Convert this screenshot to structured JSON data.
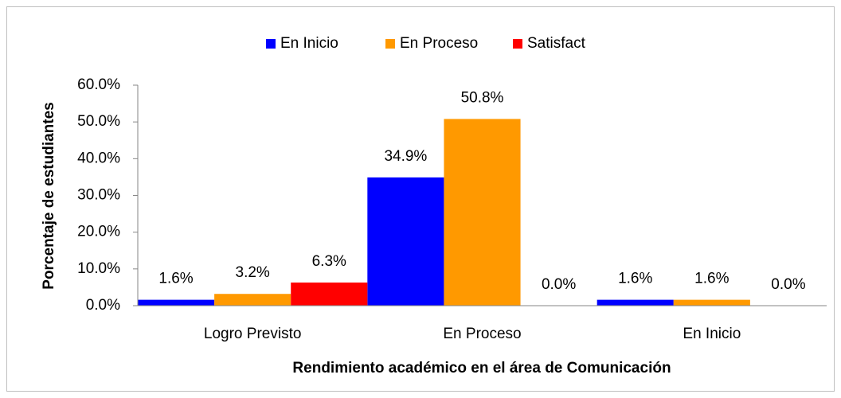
{
  "chart_data": {
    "type": "bar",
    "x_label": "Rendimiento académico en el área de Comunicación",
    "y_label": "Porcentaje de estudiantes",
    "categories": [
      "Logro Previsto",
      "En Proceso",
      "En Inicio"
    ],
    "series": [
      {
        "name": "En Inicio",
        "color": "#0000ff",
        "values": [
          1.6,
          34.9,
          1.6
        ],
        "value_labels": [
          "1.6%",
          "34.9%",
          "1.6%"
        ]
      },
      {
        "name": "En Proceso",
        "color": "#ff9900",
        "values": [
          3.2,
          50.8,
          1.6
        ],
        "value_labels": [
          "3.2%",
          "50.8%",
          "1.6%"
        ]
      },
      {
        "name": "Satisfact",
        "color": "#ff0000",
        "values": [
          6.3,
          0.0,
          0.0
        ],
        "value_labels": [
          "6.3%",
          "0.0%",
          "0.0%"
        ]
      }
    ],
    "ylim": [
      0,
      60
    ],
    "yticks": [
      {
        "value": 0,
        "label": "0.0%"
      },
      {
        "value": 10,
        "label": "10.0%"
      },
      {
        "value": 20,
        "label": "20.0%"
      },
      {
        "value": 30,
        "label": "30.0%"
      },
      {
        "value": 40,
        "label": "40.0%"
      },
      {
        "value": 50,
        "label": "50.0%"
      },
      {
        "value": 60,
        "label": "60.0%"
      }
    ],
    "legend": "top",
    "grid": false
  }
}
